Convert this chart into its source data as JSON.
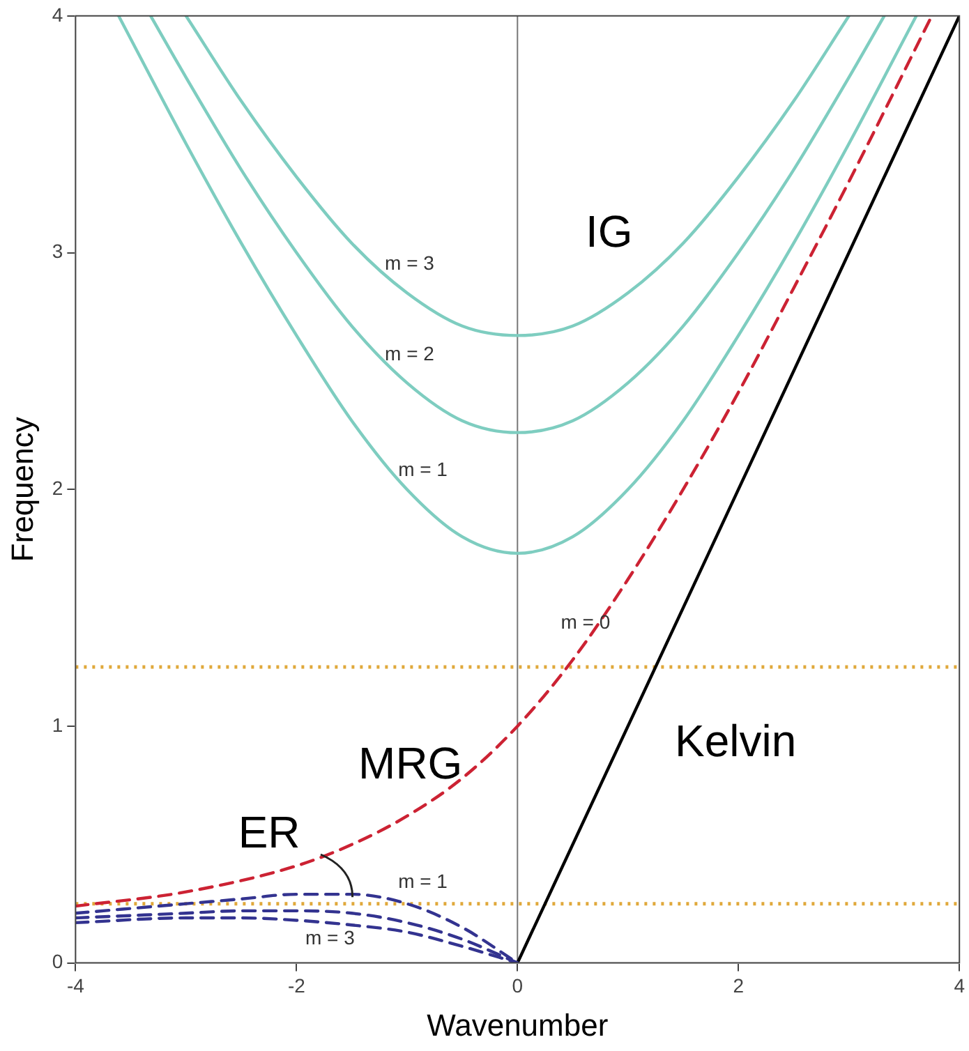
{
  "chart_data": {
    "type": "line",
    "xlabel": "Wavenumber",
    "ylabel": "Frequency",
    "xlim": [
      -4,
      4
    ],
    "xticks": [
      -4,
      -2,
      0,
      2,
      4
    ],
    "ylim": [
      0,
      4
    ],
    "yticks": [
      0,
      1,
      2,
      3,
      4
    ],
    "grid": false,
    "legend": false,
    "marker": "none",
    "series": [
      {
        "color": "#7ecdc0",
        "line_style": "solid",
        "x": [
          -3.61,
          -3,
          -2.5,
          -2,
          -1.5,
          -1,
          -0.5,
          0,
          0.5,
          1,
          1.5,
          2,
          2.5,
          3,
          3.61
        ],
        "values": [
          4.0,
          3.46,
          3.04,
          2.65,
          2.29,
          2.0,
          1.8,
          1.73,
          1.8,
          2.0,
          2.29,
          2.65,
          3.04,
          3.46,
          4.0
        ]
      },
      {
        "color": "#7ecdc0",
        "line_style": "solid",
        "x": [
          -3.32,
          -3,
          -2.5,
          -2,
          -1.5,
          -1,
          -0.5,
          0,
          0.5,
          1,
          1.5,
          2,
          2.5,
          3,
          3.32
        ],
        "values": [
          4.0,
          3.74,
          3.35,
          3.0,
          2.69,
          2.45,
          2.29,
          2.24,
          2.29,
          2.45,
          2.69,
          3.0,
          3.35,
          3.74,
          4.0
        ]
      },
      {
        "color": "#7ecdc0",
        "line_style": "solid",
        "x": [
          -3,
          -2.5,
          -2,
          -1.5,
          -1,
          -0.5,
          0,
          0.5,
          1,
          1.5,
          2,
          2.5,
          3
        ],
        "values": [
          4.0,
          3.64,
          3.32,
          3.04,
          2.83,
          2.69,
          2.65,
          2.69,
          2.83,
          3.04,
          3.32,
          3.64,
          4.0
        ]
      },
      {
        "color": "#cc2233",
        "line_style": "dashed",
        "x": [
          -4,
          -3,
          -2,
          -1.5,
          -1,
          -0.5,
          0,
          0.5,
          1,
          1.5,
          2,
          2.5,
          3,
          3.75
        ],
        "values": [
          0.24,
          0.3,
          0.41,
          0.5,
          0.62,
          0.78,
          1.0,
          1.28,
          1.62,
          2.0,
          2.41,
          2.85,
          3.3,
          4.0
        ]
      },
      {
        "color": "#333390",
        "line_style": "dashed",
        "x": [
          -4,
          -3,
          -2.5,
          -2,
          -1.5,
          -1,
          -0.5,
          0
        ],
        "values": [
          0.21,
          0.25,
          0.27,
          0.29,
          0.29,
          0.25,
          0.15,
          0
        ]
      },
      {
        "color": "#333390",
        "line_style": "dashed",
        "x": [
          -4,
          -3,
          -2.5,
          -2,
          -1.5,
          -1,
          -0.5,
          0
        ],
        "values": [
          0.19,
          0.21,
          0.22,
          0.22,
          0.21,
          0.17,
          0.1,
          0
        ]
      },
      {
        "color": "#333390",
        "line_style": "dashed",
        "x": [
          -4,
          -3,
          -2.5,
          -2,
          -1.5,
          -1,
          -0.5,
          0
        ],
        "values": [
          0.17,
          0.19,
          0.19,
          0.18,
          0.16,
          0.13,
          0.07,
          0
        ]
      },
      {
        "color": "#000000",
        "line_style": "solid",
        "x": [
          0,
          4
        ],
        "values": [
          0,
          4
        ]
      }
    ],
    "ref_lines": [
      {
        "axis": "x",
        "value": 0,
        "color": "#777777",
        "line_style": "solid"
      },
      {
        "axis": "y",
        "value": 1.25,
        "color": "#e0a83a",
        "line_style": "dotted"
      },
      {
        "axis": "y",
        "value": 0.25,
        "color": "#e0a83a",
        "line_style": "dotted"
      }
    ],
    "annotations": [
      "IG",
      "m = 3",
      "m = 2",
      "m = 1",
      "m = 0",
      "MRG",
      "Kelvin",
      "ER",
      "m = 1",
      "m = 3"
    ]
  }
}
